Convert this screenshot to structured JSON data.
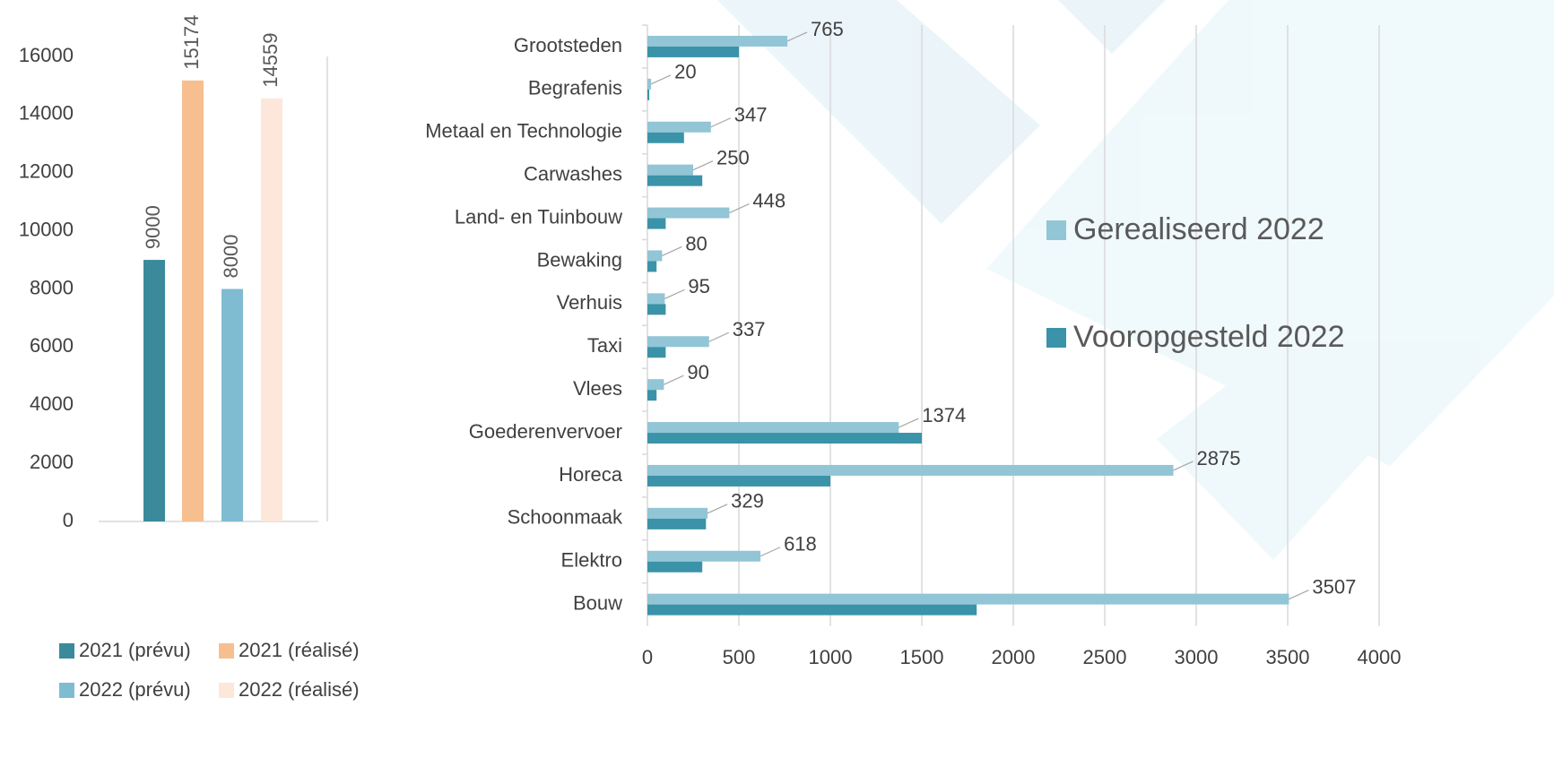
{
  "chart_data": [
    {
      "type": "bar",
      "series": [
        {
          "name": "2021 (prévu)",
          "color": "#3a8a9c",
          "values": [
            9000
          ]
        },
        {
          "name": "2021 (réalisé)",
          "color": "#f7bf8f",
          "values": [
            15174
          ]
        },
        {
          "name": "2022 (prévu)",
          "color": "#7fbcd2",
          "values": [
            8000
          ]
        },
        {
          "name": "2022 (réalisé)",
          "color": "#fde7da",
          "values": [
            14559
          ]
        }
      ],
      "ylim": [
        0,
        16000
      ],
      "yticks": [
        0,
        2000,
        4000,
        6000,
        8000,
        10000,
        12000,
        14000,
        16000
      ]
    },
    {
      "type": "barh",
      "categories": [
        "Grootsteden",
        "Begrafenis",
        "Metaal en Technologie",
        "Carwashes",
        "Land- en Tuinbouw",
        "Bewaking",
        "Verhuis",
        "Taxi",
        "Vlees",
        "Goederenvervoer",
        "Horeca",
        "Schoonmaak",
        "Elektro",
        "Bouw"
      ],
      "series": [
        {
          "name": "Gerealiseerd 2022",
          "color": "#92c5d6",
          "values": [
            765,
            20,
            347,
            250,
            448,
            80,
            95,
            337,
            90,
            1374,
            2875,
            329,
            618,
            3507
          ]
        },
        {
          "name": "Vooropgesteld 2022",
          "color": "#3a93a8",
          "values": [
            500,
            10,
            200,
            300,
            100,
            50,
            100,
            100,
            50,
            1500,
            1000,
            320,
            300,
            1800
          ]
        }
      ],
      "xlim": [
        0,
        4000
      ],
      "xticks": [
        0,
        500,
        1000,
        1500,
        2000,
        2500,
        3000,
        3500,
        4000
      ],
      "grid": true
    }
  ]
}
